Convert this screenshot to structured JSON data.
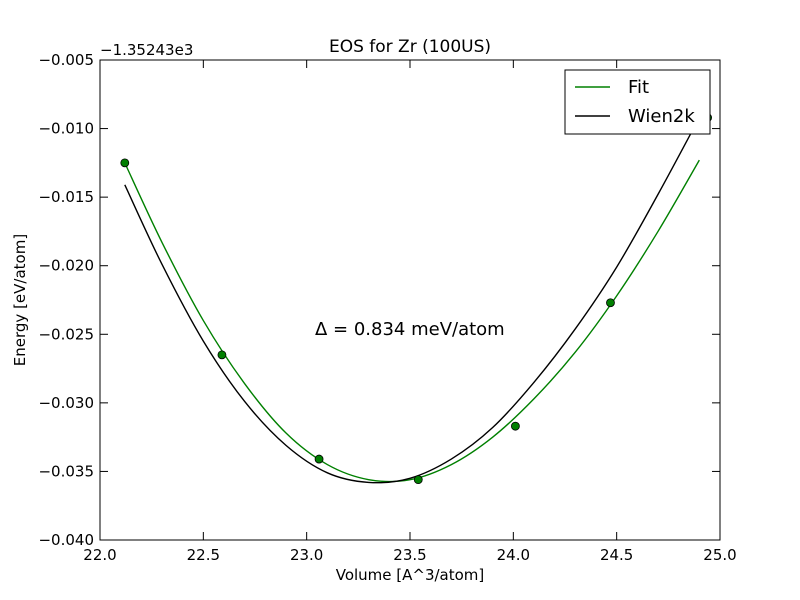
{
  "chart_data": {
    "type": "line",
    "title": "EOS for Zr (100US)",
    "xlabel": "Volume [A^3/atom]",
    "ylabel": "Energy [eV/atom]",
    "offset_label": "−1.35243e3",
    "annotation": "Δ = 0.834 meV/atom",
    "xlim": [
      22.0,
      25.0
    ],
    "ylim": [
      -0.04,
      -0.005
    ],
    "xticks": [
      22.0,
      22.5,
      23.0,
      23.5,
      24.0,
      24.5,
      25.0
    ],
    "xtick_labels": [
      "22.0",
      "22.5",
      "23.0",
      "23.5",
      "24.0",
      "24.5",
      "25.0"
    ],
    "yticks": [
      -0.04,
      -0.035,
      -0.03,
      -0.025,
      -0.02,
      -0.015,
      -0.01,
      -0.005
    ],
    "ytick_labels": [
      "−0.040",
      "−0.035",
      "−0.030",
      "−0.025",
      "−0.020",
      "−0.015",
      "−0.010",
      "−0.005"
    ],
    "grid": false,
    "legend": {
      "position": "top-right",
      "entries": [
        "Fit",
        "Wien2k"
      ]
    },
    "points": {
      "x": [
        22.12,
        22.59,
        23.06,
        23.54,
        24.01,
        24.47,
        24.94
      ],
      "y": [
        -0.0125,
        -0.0265,
        -0.0341,
        -0.0356,
        -0.0317,
        -0.0227,
        -0.0092
      ],
      "color": "#007f00"
    },
    "series": [
      {
        "name": "Fit",
        "color": "#008000",
        "x": [
          22.12,
          22.3,
          22.5,
          22.7,
          22.9,
          23.1,
          23.3,
          23.5,
          23.7,
          23.9,
          24.1,
          24.3,
          24.5,
          24.7,
          24.9
        ],
        "y": [
          -0.0125,
          -0.0183,
          -0.024,
          -0.0286,
          -0.0322,
          -0.0345,
          -0.0356,
          -0.0356,
          -0.0345,
          -0.0325,
          -0.0297,
          -0.0263,
          -0.0222,
          -0.0175,
          -0.0123
        ]
      },
      {
        "name": "Wien2k",
        "color": "#000000",
        "x": [
          22.12,
          22.3,
          22.5,
          22.7,
          22.9,
          23.1,
          23.3,
          23.5,
          23.7,
          23.9,
          24.1,
          24.3,
          24.5,
          24.7,
          24.9
        ],
        "y": [
          -0.0141,
          -0.0199,
          -0.0255,
          -0.0299,
          -0.0331,
          -0.0351,
          -0.0358,
          -0.0355,
          -0.0341,
          -0.0318,
          -0.0285,
          -0.0246,
          -0.0201,
          -0.0148,
          -0.0092
        ]
      }
    ]
  }
}
